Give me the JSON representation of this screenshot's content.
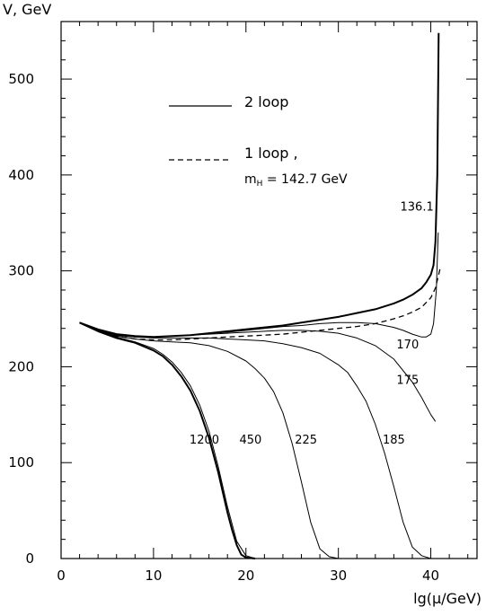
{
  "chart_data": {
    "type": "line",
    "xlabel": "lg(μ/GeV)",
    "ylabel": "V, GeV",
    "xlim": [
      0,
      45
    ],
    "ylim": [
      0,
      560
    ],
    "xticks": [
      0,
      10,
      20,
      30,
      40
    ],
    "yticks": [
      0,
      100,
      200,
      300,
      400,
      500
    ],
    "grid": false,
    "legend": {
      "placement": "top-left",
      "entries": [
        {
          "label": "2 loop",
          "style": "solid"
        },
        {
          "label": "1 loop ,",
          "style": "dashed"
        }
      ],
      "note_prefix": "m",
      "note_subscript": "H",
      "note_suffix": " = 142.7 GeV"
    },
    "series": [
      {
        "name": "136.1",
        "style": "solid",
        "width": 2,
        "x": [
          2,
          4,
          6,
          8,
          10,
          12,
          14,
          16,
          18,
          20,
          22,
          24,
          26,
          28,
          30,
          32,
          34,
          36,
          37,
          38,
          39,
          39.5,
          40,
          40.3,
          40.5,
          40.7,
          40.85
        ],
        "y": [
          246,
          239,
          234,
          232,
          231,
          232,
          233,
          235,
          237,
          239,
          241,
          243,
          246,
          249,
          252,
          256,
          260,
          266,
          270,
          275,
          282,
          288,
          296,
          306,
          330,
          400,
          548
        ]
      },
      {
        "name": "",
        "style": "dashed",
        "width": 1.3,
        "x": [
          2,
          4,
          6,
          8,
          10,
          12,
          14,
          16,
          18,
          20,
          22,
          24,
          26,
          28,
          30,
          32,
          34,
          36,
          37,
          38,
          39,
          40,
          40.5,
          41
        ],
        "y": [
          246,
          238,
          232,
          229,
          228,
          228,
          229,
          230,
          231,
          232,
          233,
          234,
          236,
          238,
          240,
          242,
          245,
          250,
          253,
          257,
          262,
          272,
          282,
          302
        ]
      },
      {
        "name": "170",
        "style": "solid",
        "width": 1,
        "x": [
          2,
          4,
          6,
          8,
          10,
          12,
          14,
          16,
          18,
          20,
          22,
          24,
          26,
          28,
          30,
          32,
          34,
          36,
          37,
          38,
          39,
          39.5,
          40,
          40.3,
          40.6,
          40.8
        ],
        "y": [
          246,
          238,
          233,
          231,
          231,
          232,
          233,
          235,
          236,
          238,
          240,
          242,
          243,
          245,
          246,
          246,
          245,
          241,
          238,
          234,
          231,
          231,
          234,
          245,
          280,
          340
        ]
      },
      {
        "name": "175",
        "style": "solid",
        "width": 1,
        "x": [
          2,
          4,
          6,
          8,
          10,
          12,
          14,
          16,
          18,
          20,
          22,
          24,
          26,
          28,
          30,
          32,
          34,
          36,
          38,
          39,
          40,
          40.5
        ],
        "y": [
          246,
          238,
          233,
          231,
          231,
          232,
          233,
          234,
          235,
          236,
          237,
          238,
          238,
          237,
          235,
          230,
          222,
          208,
          184,
          168,
          150,
          143
        ]
      },
      {
        "name": "185",
        "style": "solid",
        "width": 1,
        "x": [
          2,
          4,
          6,
          8,
          10,
          12,
          14,
          16,
          18,
          20,
          22,
          24,
          26,
          28,
          30,
          31,
          32,
          33,
          34,
          35,
          36,
          37,
          38,
          39,
          40
        ],
        "y": [
          246,
          238,
          233,
          231,
          230,
          230,
          230,
          230,
          229,
          228,
          227,
          224,
          220,
          214,
          202,
          194,
          180,
          164,
          140,
          110,
          75,
          38,
          12,
          3,
          0
        ]
      },
      {
        "name": "225",
        "style": "solid",
        "width": 1,
        "x": [
          2,
          4,
          6,
          8,
          10,
          12,
          14,
          16,
          18,
          20,
          21,
          22,
          23,
          24,
          25,
          26,
          27,
          28,
          29,
          30,
          31
        ],
        "y": [
          246,
          237,
          232,
          229,
          227,
          226,
          225,
          222,
          216,
          206,
          198,
          188,
          174,
          152,
          120,
          80,
          38,
          10,
          2,
          0,
          0
        ]
      },
      {
        "name": "450",
        "style": "solid",
        "width": 1,
        "x": [
          2,
          4,
          6,
          8,
          10,
          11,
          12,
          13,
          14,
          15,
          16,
          17,
          18,
          19,
          20,
          21,
          22,
          23
        ],
        "y": [
          246,
          237,
          231,
          226,
          219,
          213,
          205,
          194,
          180,
          160,
          133,
          96,
          54,
          18,
          3,
          0,
          0,
          0
        ]
      },
      {
        "name": "1200",
        "style": "solid",
        "width": 2,
        "x": [
          2,
          4,
          6,
          8,
          10,
          11,
          12,
          13,
          14,
          15,
          16,
          17,
          18,
          18.5,
          19,
          19.5,
          20,
          21
        ],
        "y": [
          246,
          237,
          230,
          225,
          217,
          211,
          202,
          190,
          175,
          154,
          126,
          90,
          48,
          30,
          14,
          4,
          1,
          0
        ]
      }
    ],
    "curve_labels": [
      {
        "text": "136.1",
        "x": 38.5,
        "y": 363
      },
      {
        "text": "170",
        "x": 37.5,
        "y": 219
      },
      {
        "text": "175",
        "x": 37.5,
        "y": 182
      },
      {
        "text": "185",
        "x": 36,
        "y": 120
      },
      {
        "text": "225",
        "x": 26.5,
        "y": 120
      },
      {
        "text": "450",
        "x": 20.5,
        "y": 120
      },
      {
        "text": "1200",
        "x": 15.5,
        "y": 120
      }
    ]
  }
}
